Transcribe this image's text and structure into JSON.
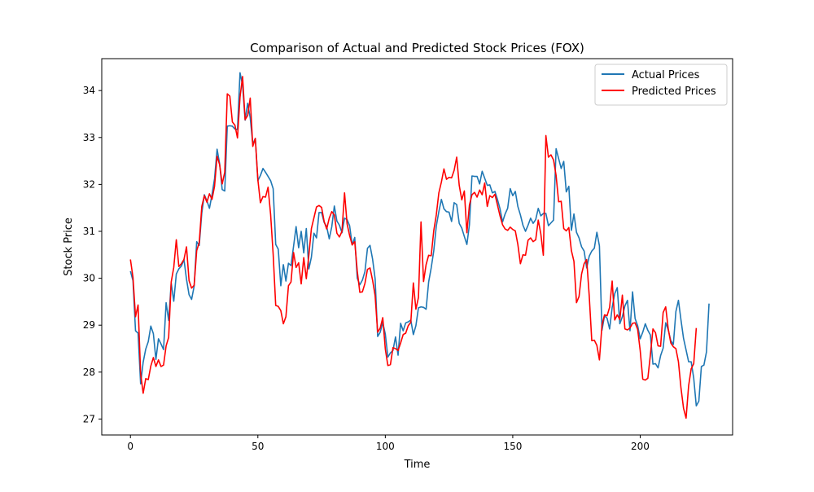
{
  "chart_data": {
    "type": "line",
    "title": "Comparison of Actual and Predicted Stock Prices (FOX)",
    "xlabel": "Time",
    "ylabel": "Stock Price",
    "xlim": [
      -11.25,
      236.25
    ],
    "ylim": [
      26.66,
      34.68
    ],
    "xticks": [
      0,
      50,
      100,
      150,
      200
    ],
    "yticks": [
      27,
      28,
      29,
      30,
      31,
      32,
      33,
      34
    ],
    "grid": false,
    "legend_position": "upper right",
    "series": [
      {
        "name": "Actual Prices",
        "color": "#1f77b4",
        "x_start": 0,
        "x_step": 1,
        "values": [
          30.15,
          29.95,
          28.88,
          28.83,
          27.75,
          28.21,
          28.49,
          28.65,
          28.98,
          28.82,
          28.27,
          28.71,
          28.6,
          28.48,
          29.48,
          29.1,
          29.9,
          29.51,
          30.09,
          30.2,
          30.26,
          30.4,
          29.98,
          29.65,
          29.55,
          29.83,
          30.78,
          30.7,
          31.39,
          31.78,
          31.65,
          31.49,
          31.78,
          32.12,
          32.75,
          32.44,
          31.89,
          31.86,
          33.24,
          33.25,
          33.24,
          33.18,
          33.17,
          34.38,
          34.11,
          33.37,
          33.73,
          33.42,
          32.86,
          32.98,
          32.08,
          32.19,
          32.34,
          32.26,
          32.17,
          32.08,
          31.91,
          30.72,
          30.62,
          29.84,
          30.29,
          29.94,
          30.32,
          30.27,
          30.68,
          31.1,
          30.65,
          31.0,
          30.54,
          31.06,
          30.2,
          30.45,
          30.96,
          30.86,
          31.4,
          31.4,
          31.19,
          31.1,
          30.84,
          31.1,
          31.54,
          31.22,
          31.13,
          30.97,
          31.28,
          31.25,
          31.12,
          30.71,
          30.87,
          30.0,
          29.86,
          29.96,
          30.14,
          30.64,
          30.7,
          30.41,
          29.99,
          28.76,
          28.85,
          29.06,
          28.81,
          28.32,
          28.41,
          28.46,
          28.75,
          28.36,
          29.04,
          28.88,
          29.05,
          29.07,
          29.11,
          28.8,
          28.99,
          29.37,
          29.39,
          29.38,
          29.34,
          29.92,
          30.22,
          30.58,
          31.11,
          31.42,
          31.68,
          31.48,
          31.42,
          31.41,
          31.21,
          31.61,
          31.57,
          31.17,
          31.07,
          30.89,
          30.72,
          31.14,
          32.18,
          32.17,
          32.17,
          32.01,
          32.28,
          32.13,
          31.98,
          31.99,
          31.82,
          31.85,
          31.68,
          31.48,
          31.2,
          31.37,
          31.49,
          31.91,
          31.76,
          31.85,
          31.53,
          31.35,
          31.13,
          31.0,
          31.13,
          31.28,
          31.17,
          31.25,
          31.49,
          31.33,
          31.38,
          31.38,
          31.12,
          31.18,
          31.24,
          32.76,
          32.55,
          32.34,
          32.49,
          31.84,
          31.96,
          31.02,
          31.37,
          30.98,
          30.86,
          30.67,
          30.58,
          30.22,
          30.47,
          30.58,
          30.64,
          30.98,
          30.69,
          28.89,
          29.2,
          29.15,
          28.92,
          29.38,
          29.67,
          29.8,
          29.03,
          29.18,
          29.41,
          29.53,
          28.88,
          29.71,
          29.14,
          28.99,
          28.71,
          28.85,
          29.03,
          28.89,
          28.79,
          28.17,
          28.18,
          28.09,
          28.35,
          28.51,
          29.05,
          28.9,
          28.67,
          28.59,
          29.29,
          29.53,
          29.11,
          28.72,
          28.47,
          28.22,
          28.22,
          27.87,
          27.28,
          27.38,
          28.12,
          28.15,
          28.43,
          29.46
        ]
      },
      {
        "name": "Predicted Prices",
        "color": "#ff0000",
        "x_start": 0,
        "x_step": 1,
        "values": [
          30.4,
          30.02,
          29.18,
          29.43,
          27.97,
          27.55,
          27.86,
          27.84,
          28.13,
          28.31,
          28.12,
          28.26,
          28.12,
          28.15,
          28.56,
          28.74,
          29.92,
          30.23,
          30.82,
          30.25,
          30.31,
          30.4,
          30.67,
          29.95,
          29.79,
          29.85,
          30.59,
          30.76,
          31.53,
          31.76,
          31.62,
          31.8,
          31.68,
          31.96,
          32.6,
          32.42,
          32.01,
          32.26,
          33.93,
          33.88,
          33.33,
          33.26,
          32.99,
          33.86,
          34.3,
          33.38,
          33.47,
          33.84,
          32.81,
          32.98,
          32.1,
          31.61,
          31.74,
          31.73,
          31.94,
          31.36,
          30.51,
          29.42,
          29.4,
          29.31,
          29.03,
          29.18,
          29.84,
          29.92,
          30.55,
          30.23,
          30.33,
          29.88,
          30.44,
          29.99,
          30.49,
          31.06,
          31.29,
          31.52,
          31.55,
          31.51,
          31.21,
          31.05,
          31.28,
          31.42,
          31.35,
          30.96,
          30.88,
          31.0,
          31.82,
          31.16,
          30.91,
          30.71,
          30.78,
          30.15,
          29.7,
          29.71,
          29.89,
          30.19,
          30.22,
          29.96,
          29.63,
          28.85,
          28.94,
          29.16,
          28.49,
          28.14,
          28.16,
          28.52,
          28.5,
          28.46,
          28.62,
          28.8,
          28.83,
          28.99,
          29.06,
          29.9,
          29.34,
          29.59,
          31.2,
          29.93,
          30.29,
          30.49,
          30.48,
          31.01,
          31.35,
          31.82,
          32.05,
          32.33,
          32.11,
          32.15,
          32.14,
          32.3,
          32.58,
          31.98,
          31.67,
          31.86,
          30.97,
          31.56,
          31.78,
          31.83,
          31.73,
          31.88,
          31.78,
          32.03,
          31.53,
          31.76,
          31.72,
          31.79,
          31.56,
          31.33,
          31.14,
          31.05,
          31.02,
          31.09,
          31.04,
          31.01,
          30.72,
          30.31,
          30.5,
          30.49,
          30.81,
          30.86,
          30.78,
          30.82,
          31.24,
          30.95,
          30.49,
          33.04,
          32.58,
          32.63,
          32.52,
          32.19,
          31.63,
          31.64,
          31.06,
          31.01,
          31.08,
          30.59,
          30.36,
          29.48,
          29.61,
          30.09,
          30.31,
          30.4,
          29.63,
          28.67,
          28.68,
          28.57,
          28.26,
          29.0,
          29.22,
          29.2,
          29.38,
          29.94,
          29.11,
          29.22,
          29.12,
          29.64,
          28.92,
          28.9,
          28.94,
          29.04,
          29.05,
          28.91,
          28.46,
          27.85,
          27.83,
          27.87,
          28.37,
          28.92,
          28.84,
          28.56,
          28.55,
          29.27,
          29.39,
          28.92,
          28.62,
          28.54,
          28.5,
          28.22,
          27.66,
          27.23,
          27.02,
          27.71,
          28.07,
          28.18,
          28.94
        ]
      }
    ]
  }
}
